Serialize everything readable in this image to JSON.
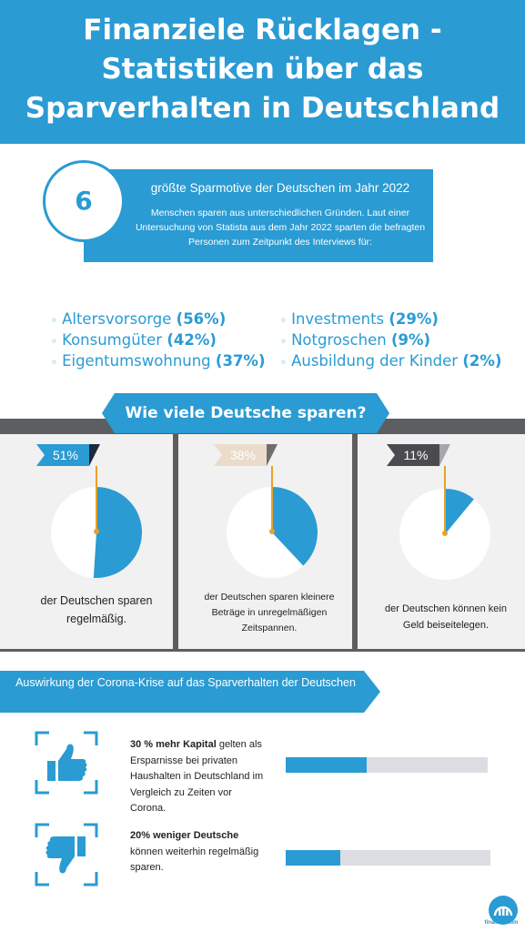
{
  "header": {
    "title_lines": [
      "Finanziele Rücklagen -",
      "Statistiken über das",
      "Sparverhalten in Deutschland"
    ]
  },
  "sparmotive": {
    "number": "6",
    "title": "größte Sparmotive der Deutschen im Jahr 2022",
    "description": "Menschen sparen aus unterschiedlichen Gründen. Laut einer Untersuchung von Statista aus dem Jahr 2022 sparten die befragten Personen zum Zeitpunkt des Interviews für:",
    "bullet": "◦",
    "items_left": [
      {
        "label": "Altersvorsorge",
        "percent": "(56%)"
      },
      {
        "label": "Konsumgüter",
        "percent": "(42%)"
      },
      {
        "label": "Eigentumswohnung",
        "percent": "(37%)"
      }
    ],
    "items_right": [
      {
        "label": "Investments",
        "percent": "(29%)"
      },
      {
        "label": "Notgroschen",
        "percent": "(9%)"
      },
      {
        "label": "Ausbildung der Kinder",
        "percent": "(2%)"
      }
    ]
  },
  "sparen": {
    "title": "Wie viele Deutsche sparen?",
    "panels": [
      {
        "flag": "51%",
        "share": 0.51,
        "flag_color": "#2a9bd3",
        "flag_tip_color": "#1a2b3c",
        "label": "der Deutschen sparen regelmäßig."
      },
      {
        "flag": "38%",
        "share": 0.38,
        "flag_color": "#eadccb",
        "flag_tip_color": "#6e6e6e",
        "label": "der Deutschen sparen kleinere Beträge in unregelmäßigen Zeitspannen."
      },
      {
        "flag": "11%",
        "share": 0.11,
        "flag_color": "#4a4a4f",
        "flag_tip_color": "#a7a7ab",
        "label": "der Deutschen können kein Geld beiseitelegen."
      }
    ]
  },
  "corona": {
    "title": "Auswirkung der Corona-Krise auf das Sparverhalten der Deutschen",
    "stats": [
      {
        "icon": "thumbs-up-icon",
        "bold": "30 % mehr Kapital",
        "text": " gelten als Ersparnisse bei privaten Haushalten in Deutschland im Vergleich zu Zeiten vor Corona.",
        "bar_value": 0.3
      },
      {
        "icon": "thumbs-down-icon",
        "bold": "20% weniger Deutsche",
        "text": " können weiterhin regelmäßig sparen.",
        "bar_value": 0.2
      }
    ]
  },
  "logo": {
    "text": "financer.com"
  },
  "colors": {
    "accent": "#2a9bd3",
    "pole": "#e8a228",
    "panel_bg": "#f1f1f1",
    "band": "#5d5e61",
    "bar_track": "#dcdde3"
  }
}
